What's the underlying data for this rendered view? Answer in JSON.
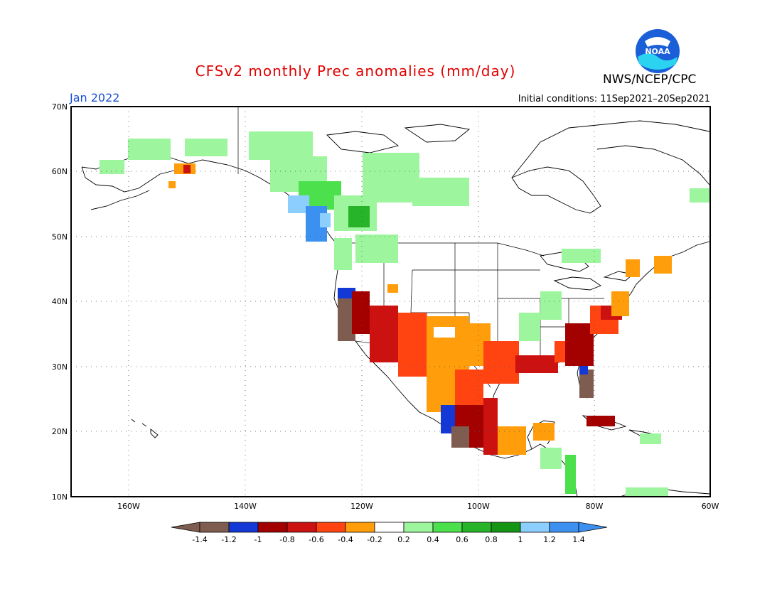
{
  "title": "CFSv2 monthly Prec anomalies (mm/day)",
  "org": "NWS/NCEP/CPC",
  "month": "Jan 2022",
  "initial_conditions": "Initial conditions: 11Sep2021–20Sep2021",
  "logo_text": "NOAA",
  "lat_labels": [
    "70N",
    "60N",
    "50N",
    "40N",
    "30N",
    "20N",
    "10N"
  ],
  "lon_labels": [
    "160W",
    "140W",
    "120W",
    "100W",
    "80W",
    "60W"
  ],
  "colorbar": {
    "colors": [
      "#7e5c4f",
      "#1438d6",
      "#a30000",
      "#cc1111",
      "#ff4412",
      "#ff9d0a",
      "#ffffff",
      "#9df59d",
      "#4de04d",
      "#28b428",
      "#149614",
      "#8ccfff",
      "#3c90f0"
    ],
    "tick_labels": [
      "-1.4",
      "-1.2",
      "-1",
      "-0.8",
      "-0.6",
      "-0.4",
      "-0.2",
      "0.2",
      "0.4",
      "0.6",
      "0.8",
      "1",
      "1.2",
      "1.4"
    ],
    "left_color": "#7e5c4f",
    "right_color": "#3c90f0"
  }
}
